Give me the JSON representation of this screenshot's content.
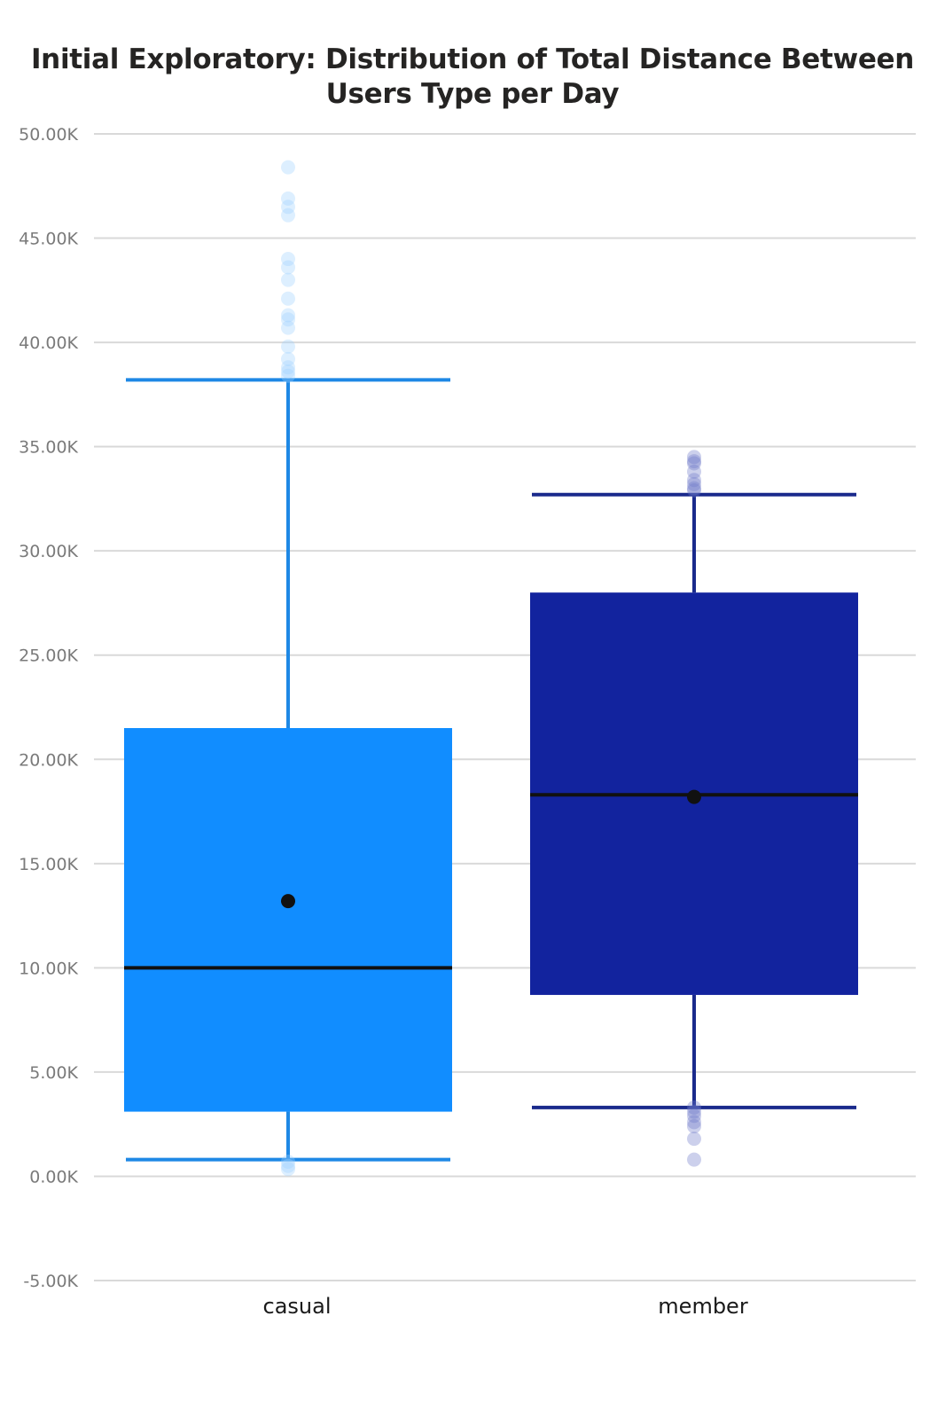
{
  "chart_data": {
    "type": "box",
    "title": "Initial Exploratory: Distribution of Total Distance Between Users Type per Day",
    "xlabel": "",
    "ylabel": "",
    "ylim": [
      -5000,
      50000
    ],
    "yticks": [
      -5000,
      0,
      5000,
      10000,
      15000,
      20000,
      25000,
      30000,
      35000,
      40000,
      45000,
      50000
    ],
    "ytick_labels": [
      "-5.00K",
      "0.00K",
      "5.00K",
      "10.00K",
      "15.00K",
      "20.00K",
      "25.00K",
      "30.00K",
      "35.00K",
      "40.00K",
      "45.00K",
      "50.00K"
    ],
    "grid": true,
    "categories": [
      "casual",
      "member"
    ],
    "series": [
      {
        "name": "casual",
        "color": "#118DFF",
        "whisker_color": "#1E88E5",
        "outlier_color": "#9FD1FF",
        "whisker_low": 800,
        "q1": 3100,
        "median": 10000,
        "q3": 21500,
        "whisker_high": 38200,
        "mean": 13200,
        "outliers": [
          48400,
          46900,
          46500,
          46100,
          44000,
          43600,
          43000,
          42100,
          41300,
          41100,
          40700,
          39800,
          39200,
          38800,
          38600,
          38400,
          700,
          500,
          350
        ]
      },
      {
        "name": "member",
        "color": "#12239E",
        "whisker_color": "#1A2A8C",
        "outlier_color": "#6E78C8",
        "whisker_low": 3300,
        "q1": 8700,
        "median": 18300,
        "q3": 28000,
        "whisker_high": 32700,
        "mean": 18200,
        "outliers": [
          34500,
          34300,
          34200,
          33800,
          33400,
          33200,
          33000,
          32900,
          3300,
          3100,
          2900,
          2600,
          2400,
          1800,
          800
        ]
      }
    ]
  }
}
